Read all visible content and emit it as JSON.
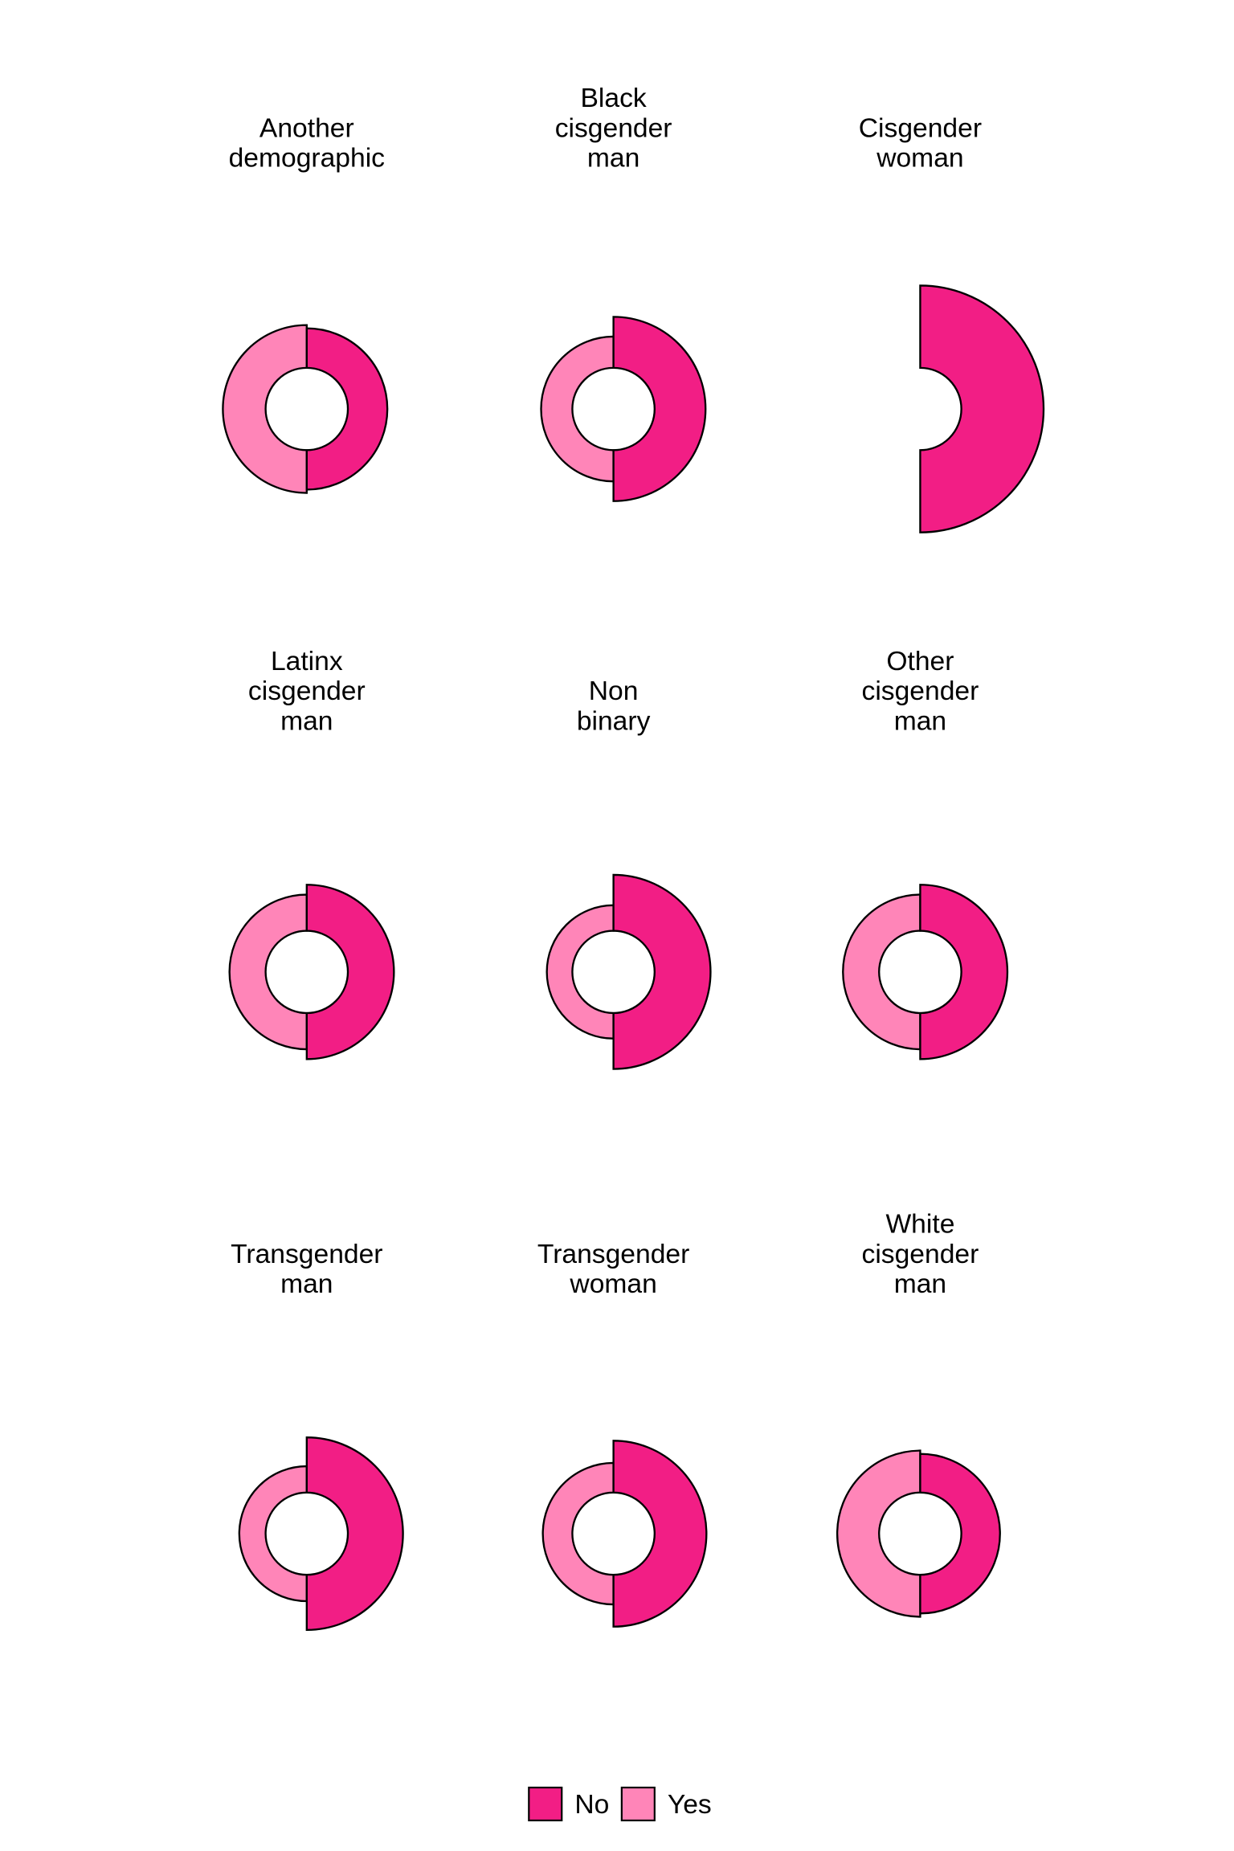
{
  "chart_data": {
    "type": "pie",
    "subtype": "faceted half-donut (radius encodes percent)",
    "colors": {
      "No": "#f21e85",
      "Yes": "#ff85b8",
      "outline": "#000000"
    },
    "legend": {
      "position": "bottom",
      "entries": [
        "No",
        "Yes"
      ]
    },
    "facets": [
      {
        "title": [
          "Another",
          "demographic"
        ],
        "No": 48,
        "Yes": 52
      },
      {
        "title": [
          "Black",
          "cisgender",
          "man"
        ],
        "No": 62,
        "Yes": 38
      },
      {
        "title": [
          "Cisgender",
          "woman"
        ],
        "No": 100,
        "Yes": 0
      },
      {
        "title": [
          "Latinx",
          "cisgender",
          "man"
        ],
        "No": 56,
        "Yes": 44
      },
      {
        "title": [
          "Non",
          "binary"
        ],
        "No": 68,
        "Yes": 31
      },
      {
        "title": [
          "Other",
          "cisgender",
          "man"
        ],
        "No": 56,
        "Yes": 44
      },
      {
        "title": [
          "Transgender",
          "man"
        ],
        "No": 67,
        "Yes": 32
      },
      {
        "title": [
          "Transgender",
          "woman"
        ],
        "No": 63,
        "Yes": 36
      },
      {
        "title": [
          "White",
          "cisgender",
          "man"
        ],
        "No": 47,
        "Yes": 51
      }
    ]
  }
}
